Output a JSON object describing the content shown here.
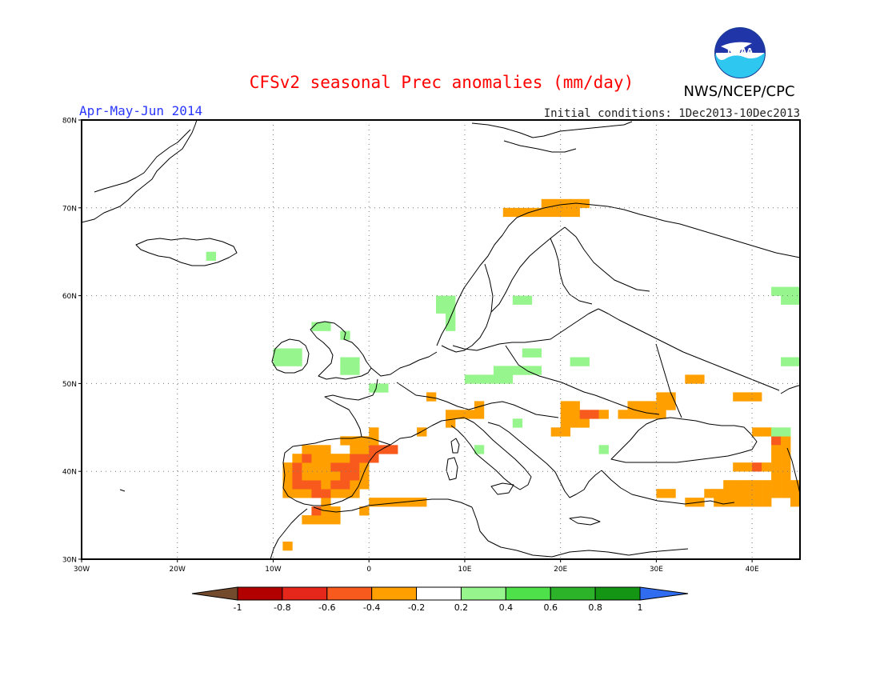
{
  "header": {
    "title": "CFSv2 seasonal Prec anomalies (mm/day)",
    "title_color": "#ff0000",
    "season": "Apr-May-Jun 2014",
    "season_color": "#2a37ff",
    "initial_conditions": "Initial conditions: 1Dec2013-10Dec2013",
    "agency": "NWS/NCEP/CPC",
    "logo_text": "NOAA"
  },
  "map": {
    "projection": "equirectangular",
    "lon_range": [
      -30,
      45
    ],
    "lat_range": [
      30,
      80
    ],
    "grid": "dotted",
    "lat_ticks": [
      "30N",
      "40N",
      "50N",
      "60N",
      "70N",
      "80N"
    ],
    "lon_ticks": [
      "30W",
      "20W",
      "10W",
      "0",
      "10E",
      "20E",
      "30E",
      "40E"
    ]
  },
  "colorbar": {
    "bins": [
      {
        "color": "#744a2c"
      },
      {
        "color": "#b20000"
      },
      {
        "color": "#e5261b"
      },
      {
        "color": "#f85a1e"
      },
      {
        "color": "#ffa000"
      },
      {
        "color": "#ffffff"
      },
      {
        "color": "#96f58c"
      },
      {
        "color": "#4fe14a"
      },
      {
        "color": "#2cb32a"
      },
      {
        "color": "#149614"
      },
      {
        "color": "#2f6cf0"
      }
    ],
    "tick_labels": [
      "-1",
      "-0.8",
      "-0.6",
      "-0.4",
      "-0.2",
      "0.2",
      "0.4",
      "0.6",
      "0.8",
      "1"
    ]
  },
  "anomaly_cells": {
    "cell_size_deg": 1,
    "legend_levels": {
      "O": "-0.4 to -0.2 mm/day",
      "R": "-0.6 to -0.4 mm/day",
      "G": "0.2 to 0.4 mm/day"
    },
    "cells": [
      {
        "lon": -9,
        "lat": 31,
        "c": "O"
      },
      {
        "lon": -7,
        "lat": 34,
        "c": "O"
      },
      {
        "lon": -6,
        "lat": 34,
        "c": "O"
      },
      {
        "lon": -5,
        "lat": 34,
        "c": "O"
      },
      {
        "lon": -4,
        "lat": 34,
        "c": "O"
      },
      {
        "lon": -6,
        "lat": 35,
        "c": "R"
      },
      {
        "lon": -5,
        "lat": 35,
        "c": "O"
      },
      {
        "lon": -4,
        "lat": 35,
        "c": "O"
      },
      {
        "lon": -5,
        "lat": 36,
        "c": "O"
      },
      {
        "lon": -1,
        "lat": 35,
        "c": "O"
      },
      {
        "lon": 0,
        "lat": 36,
        "c": "O"
      },
      {
        "lon": 1,
        "lat": 36,
        "c": "O"
      },
      {
        "lon": 2,
        "lat": 36,
        "c": "O"
      },
      {
        "lon": 3,
        "lat": 36,
        "c": "O"
      },
      {
        "lon": 4,
        "lat": 36,
        "c": "O"
      },
      {
        "lon": 5,
        "lat": 36,
        "c": "O"
      },
      {
        "lon": -9,
        "lat": 37,
        "c": "O"
      },
      {
        "lon": -8,
        "lat": 37,
        "c": "O"
      },
      {
        "lon": -7,
        "lat": 37,
        "c": "O"
      },
      {
        "lon": -6,
        "lat": 37,
        "c": "R"
      },
      {
        "lon": -5,
        "lat": 37,
        "c": "R"
      },
      {
        "lon": -4,
        "lat": 37,
        "c": "O"
      },
      {
        "lon": -3,
        "lat": 37,
        "c": "O"
      },
      {
        "lon": -2,
        "lat": 37,
        "c": "O"
      },
      {
        "lon": -9,
        "lat": 38,
        "c": "O"
      },
      {
        "lon": -8,
        "lat": 38,
        "c": "R"
      },
      {
        "lon": -7,
        "lat": 38,
        "c": "R"
      },
      {
        "lon": -6,
        "lat": 38,
        "c": "R"
      },
      {
        "lon": -5,
        "lat": 38,
        "c": "O"
      },
      {
        "lon": -4,
        "lat": 38,
        "c": "R"
      },
      {
        "lon": -3,
        "lat": 38,
        "c": "R"
      },
      {
        "lon": -2,
        "lat": 38,
        "c": "O"
      },
      {
        "lon": -1,
        "lat": 38,
        "c": "O"
      },
      {
        "lon": -9,
        "lat": 39,
        "c": "O"
      },
      {
        "lon": -8,
        "lat": 39,
        "c": "R"
      },
      {
        "lon": -7,
        "lat": 39,
        "c": "O"
      },
      {
        "lon": -6,
        "lat": 39,
        "c": "O"
      },
      {
        "lon": -5,
        "lat": 39,
        "c": "O"
      },
      {
        "lon": -4,
        "lat": 39,
        "c": "O"
      },
      {
        "lon": -3,
        "lat": 39,
        "c": "R"
      },
      {
        "lon": -2,
        "lat": 39,
        "c": "R"
      },
      {
        "lon": -1,
        "lat": 39,
        "c": "O"
      },
      {
        "lon": -9,
        "lat": 40,
        "c": "O"
      },
      {
        "lon": -8,
        "lat": 40,
        "c": "R"
      },
      {
        "lon": -7,
        "lat": 40,
        "c": "O"
      },
      {
        "lon": -6,
        "lat": 40,
        "c": "O"
      },
      {
        "lon": -5,
        "lat": 40,
        "c": "O"
      },
      {
        "lon": -4,
        "lat": 40,
        "c": "R"
      },
      {
        "lon": -3,
        "lat": 40,
        "c": "R"
      },
      {
        "lon": -2,
        "lat": 40,
        "c": "R"
      },
      {
        "lon": -1,
        "lat": 40,
        "c": "O"
      },
      {
        "lon": -8,
        "lat": 41,
        "c": "O"
      },
      {
        "lon": -7,
        "lat": 41,
        "c": "R"
      },
      {
        "lon": -6,
        "lat": 41,
        "c": "O"
      },
      {
        "lon": -5,
        "lat": 41,
        "c": "O"
      },
      {
        "lon": -4,
        "lat": 41,
        "c": "O"
      },
      {
        "lon": -3,
        "lat": 41,
        "c": "O"
      },
      {
        "lon": -2,
        "lat": 41,
        "c": "R"
      },
      {
        "lon": -1,
        "lat": 41,
        "c": "R"
      },
      {
        "lon": 0,
        "lat": 41,
        "c": "R"
      },
      {
        "lon": -7,
        "lat": 42,
        "c": "O"
      },
      {
        "lon": -6,
        "lat": 42,
        "c": "O"
      },
      {
        "lon": -5,
        "lat": 42,
        "c": "O"
      },
      {
        "lon": -2,
        "lat": 42,
        "c": "O"
      },
      {
        "lon": -1,
        "lat": 42,
        "c": "O"
      },
      {
        "lon": 0,
        "lat": 42,
        "c": "R"
      },
      {
        "lon": 1,
        "lat": 42,
        "c": "R"
      },
      {
        "lon": 2,
        "lat": 42,
        "c": "R"
      },
      {
        "lon": -3,
        "lat": 43,
        "c": "O"
      },
      {
        "lon": -2,
        "lat": 43,
        "c": "O"
      },
      {
        "lon": -1,
        "lat": 43,
        "c": "O"
      },
      {
        "lon": 0,
        "lat": 43,
        "c": "O"
      },
      {
        "lon": 0,
        "lat": 44,
        "c": "O"
      },
      {
        "lon": 5,
        "lat": 44,
        "c": "O"
      },
      {
        "lon": 8,
        "lat": 45,
        "c": "O"
      },
      {
        "lon": 9,
        "lat": 46,
        "c": "O"
      },
      {
        "lon": 10,
        "lat": 46,
        "c": "O"
      },
      {
        "lon": 11,
        "lat": 46,
        "c": "O"
      },
      {
        "lon": 11,
        "lat": 47,
        "c": "O"
      },
      {
        "lon": 8,
        "lat": 46,
        "c": "O"
      },
      {
        "lon": 6,
        "lat": 48,
        "c": "O"
      },
      {
        "lon": 19,
        "lat": 44,
        "c": "O"
      },
      {
        "lon": 20,
        "lat": 44,
        "c": "O"
      },
      {
        "lon": 20,
        "lat": 45,
        "c": "O"
      },
      {
        "lon": 21,
        "lat": 45,
        "c": "O"
      },
      {
        "lon": 22,
        "lat": 45,
        "c": "O"
      },
      {
        "lon": 20,
        "lat": 46,
        "c": "O"
      },
      {
        "lon": 21,
        "lat": 46,
        "c": "O"
      },
      {
        "lon": 22,
        "lat": 46,
        "c": "R"
      },
      {
        "lon": 23,
        "lat": 46,
        "c": "R"
      },
      {
        "lon": 20,
        "lat": 47,
        "c": "O"
      },
      {
        "lon": 21,
        "lat": 47,
        "c": "O"
      },
      {
        "lon": 24,
        "lat": 46,
        "c": "O"
      },
      {
        "lon": 26,
        "lat": 46,
        "c": "O"
      },
      {
        "lon": 27,
        "lat": 46,
        "c": "O"
      },
      {
        "lon": 28,
        "lat": 46,
        "c": "O"
      },
      {
        "lon": 29,
        "lat": 46,
        "c": "O"
      },
      {
        "lon": 30,
        "lat": 46,
        "c": "O"
      },
      {
        "lon": 27,
        "lat": 47,
        "c": "O"
      },
      {
        "lon": 28,
        "lat": 47,
        "c": "O"
      },
      {
        "lon": 29,
        "lat": 47,
        "c": "O"
      },
      {
        "lon": 30,
        "lat": 47,
        "c": "O"
      },
      {
        "lon": 31,
        "lat": 47,
        "c": "O"
      },
      {
        "lon": 30,
        "lat": 48,
        "c": "O"
      },
      {
        "lon": 31,
        "lat": 48,
        "c": "O"
      },
      {
        "lon": 33,
        "lat": 50,
        "c": "O"
      },
      {
        "lon": 34,
        "lat": 50,
        "c": "O"
      },
      {
        "lon": 38,
        "lat": 48,
        "c": "O"
      },
      {
        "lon": 39,
        "lat": 48,
        "c": "O"
      },
      {
        "lon": 40,
        "lat": 48,
        "c": "O"
      },
      {
        "lon": 40,
        "lat": 44,
        "c": "O"
      },
      {
        "lon": 41,
        "lat": 44,
        "c": "O"
      },
      {
        "lon": 42,
        "lat": 43,
        "c": "R"
      },
      {
        "lon": 43,
        "lat": 43,
        "c": "O"
      },
      {
        "lon": 42,
        "lat": 42,
        "c": "O"
      },
      {
        "lon": 43,
        "lat": 42,
        "c": "O"
      },
      {
        "lon": 42,
        "lat": 41,
        "c": "O"
      },
      {
        "lon": 43,
        "lat": 41,
        "c": "O"
      },
      {
        "lon": 38,
        "lat": 40,
        "c": "O"
      },
      {
        "lon": 39,
        "lat": 40,
        "c": "O"
      },
      {
        "lon": 40,
        "lat": 40,
        "c": "R"
      },
      {
        "lon": 41,
        "lat": 40,
        "c": "O"
      },
      {
        "lon": 42,
        "lat": 40,
        "c": "O"
      },
      {
        "lon": 43,
        "lat": 40,
        "c": "O"
      },
      {
        "lon": 42,
        "lat": 39,
        "c": "O"
      },
      {
        "lon": 43,
        "lat": 39,
        "c": "O"
      },
      {
        "lon": 37,
        "lat": 38,
        "c": "O"
      },
      {
        "lon": 38,
        "lat": 38,
        "c": "O"
      },
      {
        "lon": 39,
        "lat": 38,
        "c": "O"
      },
      {
        "lon": 40,
        "lat": 38,
        "c": "O"
      },
      {
        "lon": 41,
        "lat": 38,
        "c": "O"
      },
      {
        "lon": 42,
        "lat": 38,
        "c": "O"
      },
      {
        "lon": 43,
        "lat": 38,
        "c": "O"
      },
      {
        "lon": 44,
        "lat": 38,
        "c": "O"
      },
      {
        "lon": 30,
        "lat": 37,
        "c": "O"
      },
      {
        "lon": 31,
        "lat": 37,
        "c": "O"
      },
      {
        "lon": 35,
        "lat": 37,
        "c": "O"
      },
      {
        "lon": 36,
        "lat": 37,
        "c": "O"
      },
      {
        "lon": 37,
        "lat": 37,
        "c": "O"
      },
      {
        "lon": 38,
        "lat": 37,
        "c": "O"
      },
      {
        "lon": 39,
        "lat": 37,
        "c": "O"
      },
      {
        "lon": 40,
        "lat": 37,
        "c": "O"
      },
      {
        "lon": 41,
        "lat": 37,
        "c": "O"
      },
      {
        "lon": 42,
        "lat": 37,
        "c": "O"
      },
      {
        "lon": 43,
        "lat": 37,
        "c": "O"
      },
      {
        "lon": 44,
        "lat": 37,
        "c": "O"
      },
      {
        "lon": 33,
        "lat": 36,
        "c": "O"
      },
      {
        "lon": 34,
        "lat": 36,
        "c": "O"
      },
      {
        "lon": 36,
        "lat": 36,
        "c": "O"
      },
      {
        "lon": 37,
        "lat": 36,
        "c": "O"
      },
      {
        "lon": 38,
        "lat": 36,
        "c": "O"
      },
      {
        "lon": 39,
        "lat": 36,
        "c": "O"
      },
      {
        "lon": 40,
        "lat": 36,
        "c": "O"
      },
      {
        "lon": 41,
        "lat": 36,
        "c": "O"
      },
      {
        "lon": 44,
        "lat": 36,
        "c": "O"
      },
      {
        "lon": 14,
        "lat": 69,
        "c": "O"
      },
      {
        "lon": 15,
        "lat": 69,
        "c": "O"
      },
      {
        "lon": 16,
        "lat": 69,
        "c": "O"
      },
      {
        "lon": 17,
        "lat": 69,
        "c": "O"
      },
      {
        "lon": 18,
        "lat": 69,
        "c": "O"
      },
      {
        "lon": 19,
        "lat": 69,
        "c": "O"
      },
      {
        "lon": 20,
        "lat": 69,
        "c": "O"
      },
      {
        "lon": 21,
        "lat": 69,
        "c": "O"
      },
      {
        "lon": 18,
        "lat": 70,
        "c": "O"
      },
      {
        "lon": 19,
        "lat": 70,
        "c": "O"
      },
      {
        "lon": 20,
        "lat": 70,
        "c": "O"
      },
      {
        "lon": 21,
        "lat": 70,
        "c": "O"
      },
      {
        "lon": 22,
        "lat": 70,
        "c": "O"
      },
      {
        "lon": -17,
        "lat": 64,
        "c": "G"
      },
      {
        "lon": 7,
        "lat": 58,
        "c": "G"
      },
      {
        "lon": 8,
        "lat": 58,
        "c": "G"
      },
      {
        "lon": 7,
        "lat": 59,
        "c": "G"
      },
      {
        "lon": 8,
        "lat": 59,
        "c": "G"
      },
      {
        "lon": 8,
        "lat": 57,
        "c": "G"
      },
      {
        "lon": 8,
        "lat": 56,
        "c": "G"
      },
      {
        "lon": 15,
        "lat": 59,
        "c": "G"
      },
      {
        "lon": 16,
        "lat": 59,
        "c": "G"
      },
      {
        "lon": -6,
        "lat": 56,
        "c": "G"
      },
      {
        "lon": -5,
        "lat": 56,
        "c": "G"
      },
      {
        "lon": -3,
        "lat": 55,
        "c": "G"
      },
      {
        "lon": -10,
        "lat": 53,
        "c": "G"
      },
      {
        "lon": -9,
        "lat": 53,
        "c": "G"
      },
      {
        "lon": -8,
        "lat": 53,
        "c": "G"
      },
      {
        "lon": -10,
        "lat": 52,
        "c": "G"
      },
      {
        "lon": -9,
        "lat": 52,
        "c": "G"
      },
      {
        "lon": -8,
        "lat": 52,
        "c": "G"
      },
      {
        "lon": -3,
        "lat": 52,
        "c": "G"
      },
      {
        "lon": -2,
        "lat": 52,
        "c": "G"
      },
      {
        "lon": -3,
        "lat": 51,
        "c": "G"
      },
      {
        "lon": -2,
        "lat": 51,
        "c": "G"
      },
      {
        "lon": 0,
        "lat": 49,
        "c": "G"
      },
      {
        "lon": 1,
        "lat": 49,
        "c": "G"
      },
      {
        "lon": 16,
        "lat": 53,
        "c": "G"
      },
      {
        "lon": 17,
        "lat": 53,
        "c": "G"
      },
      {
        "lon": 21,
        "lat": 52,
        "c": "G"
      },
      {
        "lon": 22,
        "lat": 52,
        "c": "G"
      },
      {
        "lon": 13,
        "lat": 51,
        "c": "G"
      },
      {
        "lon": 14,
        "lat": 51,
        "c": "G"
      },
      {
        "lon": 15,
        "lat": 51,
        "c": "G"
      },
      {
        "lon": 16,
        "lat": 51,
        "c": "G"
      },
      {
        "lon": 17,
        "lat": 51,
        "c": "G"
      },
      {
        "lon": 10,
        "lat": 50,
        "c": "G"
      },
      {
        "lon": 11,
        "lat": 50,
        "c": "G"
      },
      {
        "lon": 12,
        "lat": 50,
        "c": "G"
      },
      {
        "lon": 13,
        "lat": 50,
        "c": "G"
      },
      {
        "lon": 14,
        "lat": 50,
        "c": "G"
      },
      {
        "lon": 15,
        "lat": 45,
        "c": "G"
      },
      {
        "lon": 11,
        "lat": 42,
        "c": "G"
      },
      {
        "lon": 24,
        "lat": 42,
        "c": "G"
      },
      {
        "lon": 42,
        "lat": 60,
        "c": "G"
      },
      {
        "lon": 43,
        "lat": 60,
        "c": "G"
      },
      {
        "lon": 44,
        "lat": 60,
        "c": "G"
      },
      {
        "lon": 43,
        "lat": 59,
        "c": "G"
      },
      {
        "lon": 44,
        "lat": 59,
        "c": "G"
      },
      {
        "lon": 45,
        "lat": 61,
        "c": "G"
      },
      {
        "lon": 43,
        "lat": 52,
        "c": "G"
      },
      {
        "lon": 44,
        "lat": 52,
        "c": "G"
      },
      {
        "lon": 45,
        "lat": 53,
        "c": "G"
      },
      {
        "lon": 42,
        "lat": 44,
        "c": "G"
      },
      {
        "lon": 43,
        "lat": 44,
        "c": "G"
      },
      {
        "lon": 45,
        "lat": 43,
        "c": "G"
      }
    ]
  }
}
